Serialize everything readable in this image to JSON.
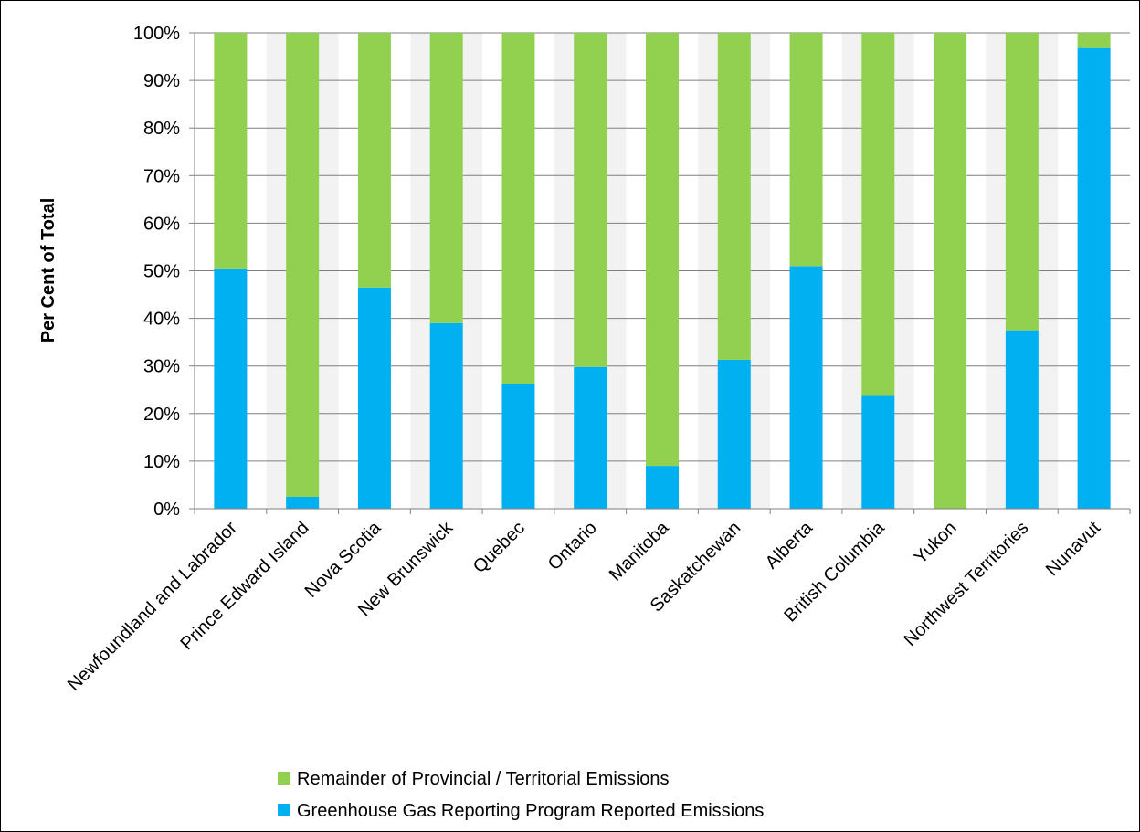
{
  "chart_data": {
    "type": "bar",
    "stacked": true,
    "ylabel": "Per Cent of Total",
    "ylim": [
      0,
      100
    ],
    "yticks": [
      "0%",
      "10%",
      "20%",
      "30%",
      "40%",
      "50%",
      "60%",
      "70%",
      "80%",
      "90%",
      "100%"
    ],
    "categories": [
      "Newfoundland and Labrador",
      "Prince Edward Island",
      "Nova Scotia",
      "New Brunswick",
      "Quebec",
      "Ontario",
      "Manitoba",
      "Saskatchewan",
      "Alberta",
      "British Columbia",
      "Yukon",
      "Northwest Territories",
      "Nunavut"
    ],
    "series": [
      {
        "name": "Greenhouse Gas Reporting Program Reported Emissions",
        "color": "#00b0f0",
        "values": [
          50.5,
          2.5,
          46.5,
          39,
          26.2,
          29.8,
          9,
          31.3,
          51,
          23.7,
          0,
          37.5,
          96.8
        ]
      },
      {
        "name": "Remainder of Provincial / Territorial Emissions",
        "color": "#92d050",
        "values": [
          49.5,
          97.5,
          53.5,
          61,
          73.8,
          70.2,
          91,
          68.7,
          49,
          76.3,
          100,
          62.5,
          3.2
        ]
      }
    ],
    "legend_order": [
      1,
      0
    ],
    "legend_position": "bottom",
    "grid": true,
    "plot_background": "#f2f2f2"
  }
}
